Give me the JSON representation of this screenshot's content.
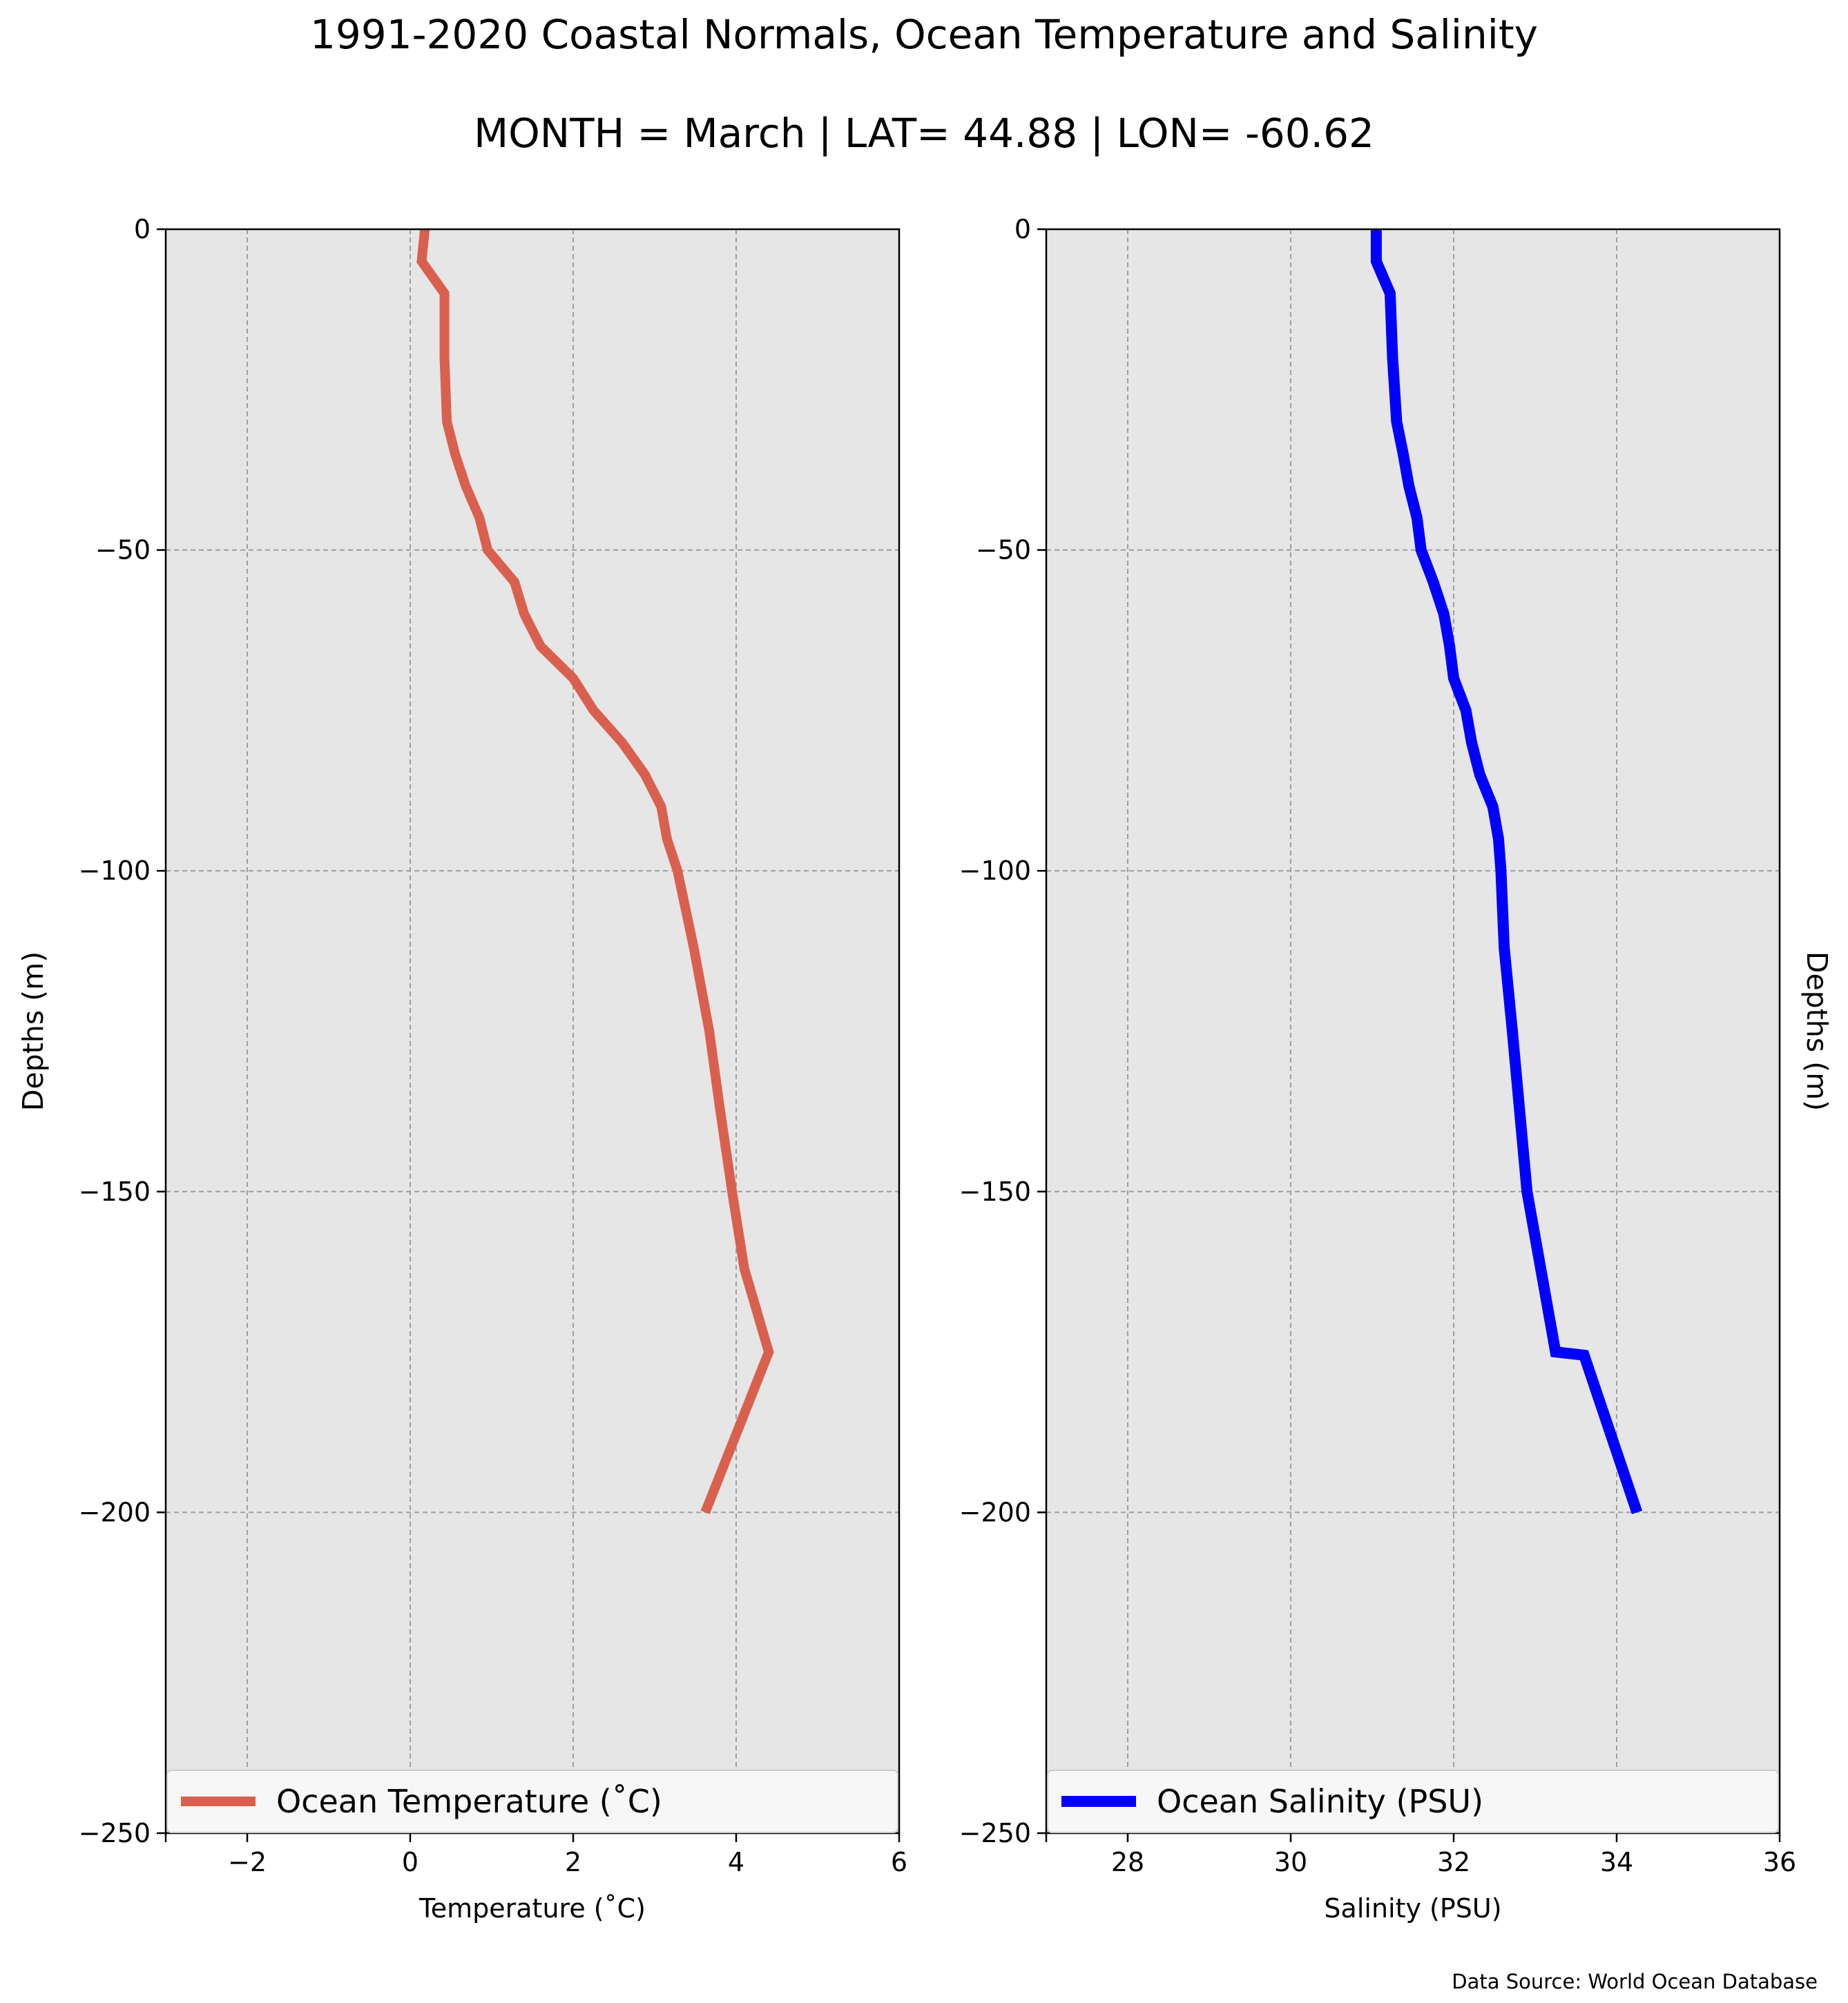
{
  "figure": {
    "title": "1991-2020 Coastal Normals, Ocean Temperature and Salinity",
    "subtitle": "MONTH = March | LAT= 44.88 | LON= -60.62",
    "source": "Data Source: World Ocean Database"
  },
  "chart_data": [
    {
      "type": "line",
      "xlabel": "Temperature ($^\\circ$C)",
      "xlabel_display": "Temperature (˚C)",
      "ylabel": "Depths (m)",
      "xlim": [
        -3,
        6
      ],
      "ylim": [
        -250,
        0
      ],
      "xticks": [
        -2,
        0,
        2,
        4,
        6
      ],
      "xtick_labels": [
        "−2",
        "0",
        "2",
        "4",
        "6"
      ],
      "yticks": [
        0,
        -50,
        -100,
        -150,
        -200,
        -250
      ],
      "ytick_labels": [
        "0",
        "−50",
        "−100",
        "−150",
        "−200",
        "−250"
      ],
      "grid": true,
      "legend_position": "lower center",
      "series": [
        {
          "name": "Ocean Temperature (˚C)",
          "color": "#d9604e",
          "x": [
            0.18,
            0.14,
            0.42,
            0.42,
            0.45,
            0.55,
            0.68,
            0.85,
            0.95,
            1.28,
            1.4,
            1.6,
            2.0,
            2.25,
            2.6,
            2.88,
            3.08,
            3.15,
            3.28,
            3.48,
            3.67,
            3.8,
            3.95,
            4.1,
            4.4,
            3.62
          ],
          "y": [
            0,
            -5,
            -10,
            -20,
            -30,
            -35,
            -40,
            -45,
            -50,
            -55,
            -60,
            -65,
            -70,
            -75,
            -80,
            -85,
            -90,
            -95,
            -100,
            -112,
            -125,
            -137,
            -150,
            -162,
            -175,
            -200
          ]
        }
      ]
    },
    {
      "type": "line",
      "xlabel": "Salinity (PSU)",
      "ylabel": "Depths (m)",
      "xlim": [
        27,
        36
      ],
      "ylim": [
        -250,
        0
      ],
      "xticks": [
        28,
        30,
        32,
        34,
        36
      ],
      "xtick_labels": [
        "28",
        "30",
        "32",
        "34",
        "36"
      ],
      "yticks": [
        0,
        -50,
        -100,
        -150,
        -200,
        -250
      ],
      "ytick_labels": [
        "0",
        "−50",
        "−100",
        "−150",
        "−200",
        "−250"
      ],
      "grid": true,
      "legend_position": "lower center",
      "series": [
        {
          "name": "Ocean Salinity (PSU)",
          "color": "#0000ff",
          "x": [
            31.05,
            31.05,
            31.22,
            31.25,
            31.3,
            31.38,
            31.45,
            31.55,
            31.6,
            31.75,
            31.88,
            31.95,
            32.0,
            32.15,
            32.22,
            32.32,
            32.48,
            32.55,
            32.58,
            32.62,
            32.72,
            32.9,
            33.25,
            33.6,
            34.25
          ],
          "y": [
            0,
            -5,
            -10,
            -20,
            -30,
            -35,
            -40,
            -45,
            -50,
            -55,
            -60,
            -65,
            -70,
            -75,
            -80,
            -85,
            -90,
            -95,
            -100,
            -112,
            -125,
            -150,
            -175,
            -175.5,
            -200
          ]
        }
      ]
    }
  ]
}
